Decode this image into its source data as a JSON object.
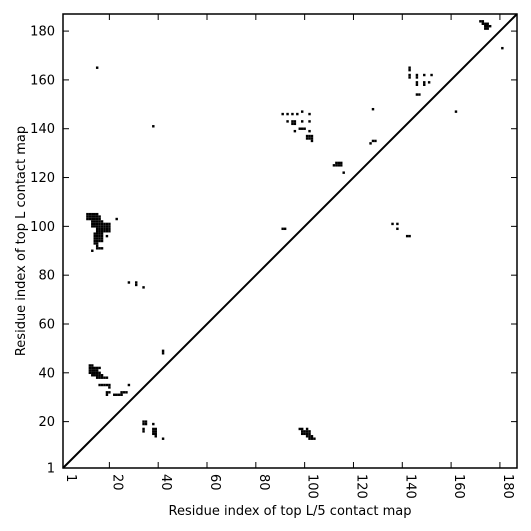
{
  "chart_data": {
    "type": "heatmap",
    "title": "",
    "xlabel": "Residue index of top L/5 contact map",
    "ylabel": "Residue index of top L contact map",
    "xlim": [
      1,
      187
    ],
    "ylim": [
      1,
      187
    ],
    "x_ticks": [
      1,
      20,
      40,
      60,
      80,
      100,
      120,
      140,
      160,
      180
    ],
    "y_ticks": [
      1,
      20,
      40,
      60,
      80,
      100,
      120,
      140,
      160,
      180
    ],
    "x_tick_rotation_deg": 90,
    "grid": false,
    "diagonal": true,
    "cell_color": "#000000",
    "background_color": "#ffffff",
    "upper_left_contacts": [
      [
        11,
        105
      ],
      [
        12,
        105
      ],
      [
        13,
        105
      ],
      [
        14,
        105
      ],
      [
        15,
        105
      ],
      [
        11,
        104
      ],
      [
        12,
        104
      ],
      [
        13,
        104
      ],
      [
        14,
        104
      ],
      [
        15,
        104
      ],
      [
        16,
        104
      ],
      [
        11,
        103
      ],
      [
        12,
        103
      ],
      [
        13,
        103
      ],
      [
        14,
        103
      ],
      [
        15,
        103
      ],
      [
        16,
        103
      ],
      [
        23,
        103
      ],
      [
        13,
        102
      ],
      [
        14,
        102
      ],
      [
        15,
        102
      ],
      [
        16,
        102
      ],
      [
        17,
        102
      ],
      [
        13,
        101
      ],
      [
        14,
        101
      ],
      [
        15,
        101
      ],
      [
        16,
        101
      ],
      [
        17,
        101
      ],
      [
        18,
        101
      ],
      [
        19,
        101
      ],
      [
        20,
        101
      ],
      [
        13,
        100
      ],
      [
        14,
        100
      ],
      [
        15,
        100
      ],
      [
        16,
        100
      ],
      [
        17,
        100
      ],
      [
        18,
        100
      ],
      [
        19,
        100
      ],
      [
        20,
        100
      ],
      [
        15,
        99
      ],
      [
        16,
        99
      ],
      [
        17,
        99
      ],
      [
        18,
        99
      ],
      [
        19,
        99
      ],
      [
        20,
        99
      ],
      [
        15,
        98
      ],
      [
        16,
        98
      ],
      [
        17,
        98
      ],
      [
        18,
        98
      ],
      [
        19,
        98
      ],
      [
        20,
        98
      ],
      [
        14,
        97
      ],
      [
        15,
        97
      ],
      [
        16,
        97
      ],
      [
        17,
        97
      ],
      [
        14,
        96
      ],
      [
        15,
        96
      ],
      [
        16,
        96
      ],
      [
        17,
        96
      ],
      [
        19,
        96
      ],
      [
        14,
        95
      ],
      [
        15,
        95
      ],
      [
        16,
        95
      ],
      [
        17,
        95
      ],
      [
        14,
        94
      ],
      [
        15,
        94
      ],
      [
        16,
        94
      ],
      [
        17,
        94
      ],
      [
        14,
        93
      ],
      [
        15,
        93
      ],
      [
        15,
        92
      ],
      [
        15,
        91
      ],
      [
        16,
        91
      ],
      [
        17,
        91
      ],
      [
        13,
        90
      ],
      [
        28,
        77
      ],
      [
        31,
        77
      ],
      [
        31,
        76
      ],
      [
        34,
        75
      ],
      [
        12,
        43
      ],
      [
        13,
        43
      ],
      [
        12,
        42
      ],
      [
        13,
        42
      ],
      [
        14,
        42
      ],
      [
        15,
        42
      ],
      [
        16,
        42
      ],
      [
        12,
        41
      ],
      [
        13,
        41
      ],
      [
        14,
        41
      ],
      [
        15,
        41
      ],
      [
        12,
        40
      ],
      [
        13,
        40
      ],
      [
        14,
        40
      ],
      [
        15,
        40
      ],
      [
        16,
        40
      ],
      [
        13,
        39
      ],
      [
        14,
        39
      ],
      [
        15,
        39
      ],
      [
        16,
        39
      ],
      [
        17,
        39
      ],
      [
        15,
        38
      ],
      [
        16,
        38
      ],
      [
        17,
        38
      ],
      [
        18,
        38
      ],
      [
        19,
        38
      ],
      [
        16,
        35
      ],
      [
        17,
        35
      ],
      [
        18,
        35
      ],
      [
        19,
        35
      ],
      [
        20,
        35
      ],
      [
        28,
        35
      ],
      [
        20,
        34
      ],
      [
        19,
        32
      ],
      [
        20,
        32
      ],
      [
        25,
        32
      ],
      [
        26,
        32
      ],
      [
        27,
        32
      ],
      [
        19,
        31
      ],
      [
        22,
        31
      ],
      [
        23,
        31
      ],
      [
        24,
        31
      ],
      [
        25,
        31
      ],
      [
        42,
        49
      ],
      [
        42,
        48
      ],
      [
        15,
        165
      ],
      [
        38,
        141
      ],
      [
        91,
        99
      ],
      [
        92,
        99
      ],
      [
        91,
        146
      ],
      [
        93,
        146
      ],
      [
        95,
        146
      ],
      [
        97,
        146
      ],
      [
        99,
        147
      ],
      [
        102,
        146
      ],
      [
        93,
        143
      ],
      [
        95,
        143
      ],
      [
        96,
        143
      ],
      [
        99,
        143
      ],
      [
        102,
        143
      ],
      [
        95,
        142
      ],
      [
        96,
        142
      ],
      [
        98,
        140
      ],
      [
        99,
        140
      ],
      [
        100,
        140
      ],
      [
        96,
        139
      ],
      [
        102,
        139
      ],
      [
        101,
        137
      ],
      [
        102,
        137
      ],
      [
        103,
        137
      ],
      [
        101,
        136
      ],
      [
        102,
        136
      ],
      [
        103,
        136
      ],
      [
        103,
        135
      ],
      [
        113,
        126
      ],
      [
        114,
        126
      ],
      [
        115,
        126
      ],
      [
        112,
        125
      ],
      [
        113,
        125
      ],
      [
        114,
        125
      ],
      [
        115,
        125
      ],
      [
        116,
        122
      ],
      [
        128,
        148
      ],
      [
        128,
        135
      ],
      [
        129,
        135
      ],
      [
        127,
        134
      ],
      [
        136,
        101
      ],
      [
        138,
        101
      ],
      [
        138,
        99
      ],
      [
        142,
        96
      ],
      [
        143,
        96
      ],
      [
        143,
        165
      ],
      [
        143,
        164
      ],
      [
        143,
        162
      ],
      [
        143,
        161
      ],
      [
        146,
        162
      ],
      [
        146,
        161
      ],
      [
        149,
        162
      ],
      [
        152,
        162
      ],
      [
        146,
        159
      ],
      [
        146,
        158
      ],
      [
        149,
        159
      ],
      [
        149,
        158
      ],
      [
        151,
        159
      ],
      [
        146,
        154
      ],
      [
        147,
        154
      ],
      [
        162,
        147
      ],
      [
        172,
        184
      ],
      [
        173,
        184
      ],
      [
        173,
        183
      ],
      [
        174,
        183
      ],
      [
        175,
        183
      ],
      [
        174,
        182
      ],
      [
        175,
        182
      ],
      [
        176,
        182
      ],
      [
        174,
        181
      ],
      [
        175,
        181
      ],
      [
        181,
        173
      ]
    ],
    "lower_right_contacts": [
      [
        34,
        20
      ],
      [
        35,
        20
      ],
      [
        34,
        19
      ],
      [
        35,
        19
      ],
      [
        38,
        19
      ],
      [
        34,
        17
      ],
      [
        38,
        17
      ],
      [
        39,
        17
      ],
      [
        34,
        16
      ],
      [
        38,
        16
      ],
      [
        39,
        16
      ],
      [
        38,
        15
      ],
      [
        39,
        15
      ],
      [
        39,
        14
      ],
      [
        42,
        13
      ],
      [
        98,
        17
      ],
      [
        99,
        17
      ],
      [
        101,
        17
      ],
      [
        99,
        16
      ],
      [
        100,
        16
      ],
      [
        101,
        16
      ],
      [
        102,
        16
      ],
      [
        99,
        15
      ],
      [
        100,
        15
      ],
      [
        101,
        15
      ],
      [
        102,
        15
      ],
      [
        101,
        14
      ],
      [
        102,
        14
      ],
      [
        103,
        14
      ],
      [
        102,
        13
      ],
      [
        103,
        13
      ],
      [
        104,
        13
      ]
    ]
  }
}
